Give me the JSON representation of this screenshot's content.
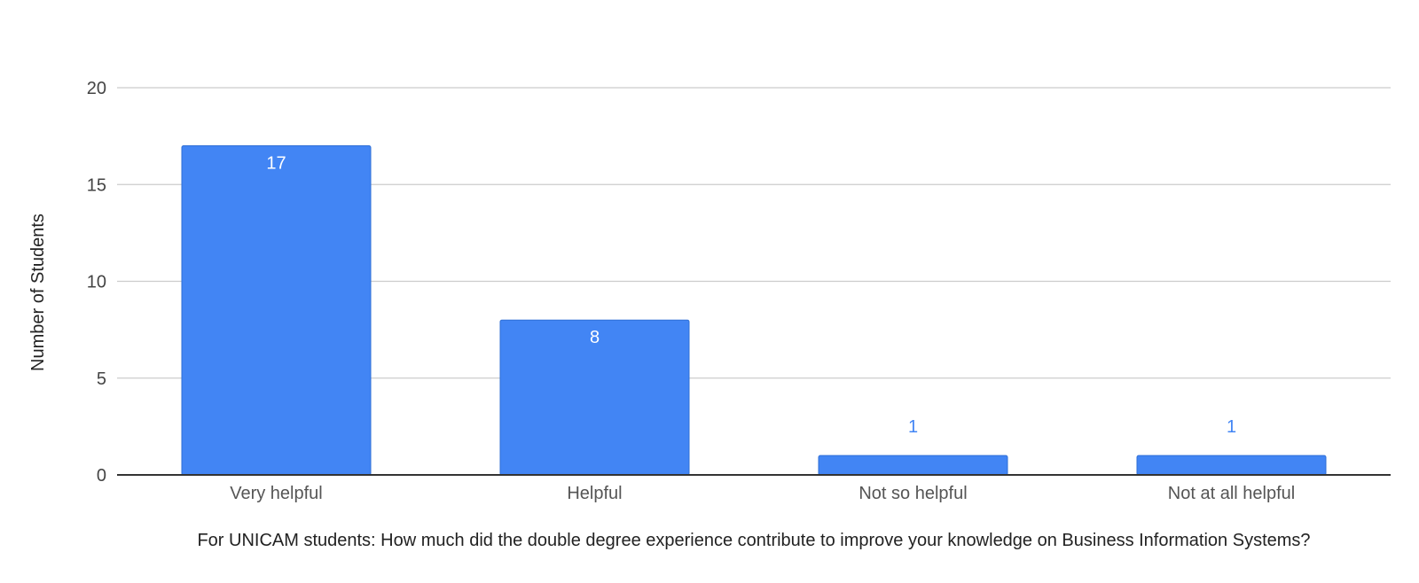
{
  "chart_data": {
    "type": "bar",
    "title": "",
    "xlabel": "For UNICAM students: How much did the double degree experience contribute to improve your knowledge on Business Information Systems?",
    "ylabel": "Number of Students",
    "categories": [
      "Very helpful",
      "Helpful",
      "Not so helpful",
      "Not at all helpful"
    ],
    "values": [
      17,
      8,
      1,
      1
    ],
    "ylim": [
      0,
      20
    ],
    "yticks": [
      0,
      5,
      10,
      15,
      20
    ],
    "grid": true,
    "legend": "none",
    "data_labels": true,
    "colors": {
      "bar": "#4285f4",
      "bar_border": "#2f6fd6",
      "grid": "#cccccc",
      "baseline": "#333333",
      "label_inside": "#ffffff",
      "label_outside": "#4285f4"
    }
  }
}
